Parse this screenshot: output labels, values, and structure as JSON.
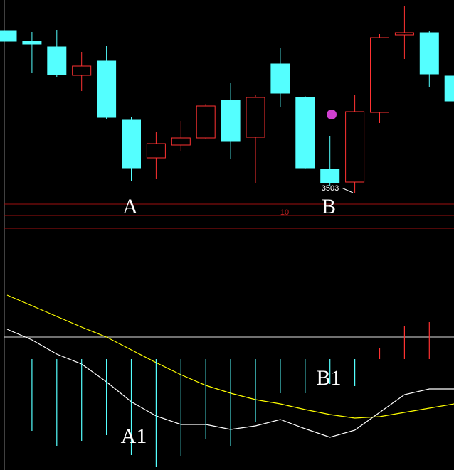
{
  "chart_data": [
    {
      "type": "candlestick",
      "up_color": "#ff3232",
      "down_color": "#54ffff",
      "ylim": [
        3480,
        3765
      ],
      "open": [
        3722,
        3707,
        3699,
        3659,
        3679,
        3596,
        3543,
        3561,
        3571,
        3624,
        3572,
        3675,
        3628,
        3527,
        3509,
        3607,
        3716,
        3719,
        3658
      ],
      "high": [
        3722,
        3720,
        3723,
        3692,
        3701,
        3600,
        3580,
        3595,
        3619,
        3648,
        3632,
        3698,
        3630,
        3574,
        3632,
        3717,
        3757,
        3721,
        3658
      ],
      "low": [
        3707,
        3662,
        3657,
        3637,
        3598,
        3511,
        3513,
        3552,
        3569,
        3541,
        3508,
        3614,
        3527,
        3503,
        3494,
        3592,
        3682,
        3643,
        3623
      ],
      "close": [
        3707,
        3703,
        3660,
        3672,
        3600,
        3529,
        3563,
        3571,
        3616,
        3566,
        3628,
        3634,
        3529,
        3508,
        3608,
        3712,
        3719,
        3661,
        3623
      ],
      "annotations": [
        "A",
        "B",
        "3503",
        "10"
      ]
    },
    {
      "type": "macd",
      "ylim": [
        -156,
        175
      ],
      "series": [
        {
          "kind": "line",
          "color": "#ffffff",
          "values": [
            42,
            27,
            7,
            -7,
            -32,
            -60,
            -80,
            -92,
            -92,
            -99,
            -94,
            -85,
            -98,
            -110,
            -100,
            -75,
            -50,
            -42,
            -42
          ]
        },
        {
          "kind": "line",
          "color": "#ffff00",
          "values": [
            90,
            75,
            60,
            45,
            31,
            13,
            -5,
            -22,
            -37,
            -48,
            -57,
            -63,
            -71,
            -78,
            -83,
            -81,
            -75,
            -69,
            -63
          ]
        },
        {
          "kind": "histogram",
          "up_color": "#ff3232",
          "down_color": "#54ffff",
          "values": [
            null,
            -101,
            -122,
            -115,
            -107,
            -135,
            -152,
            -137,
            -112,
            -122,
            -88,
            -48,
            -48,
            -35,
            -38,
            15,
            47,
            52,
            null
          ]
        }
      ],
      "annotations": [
        "A1",
        "B1"
      ]
    }
  ]
}
